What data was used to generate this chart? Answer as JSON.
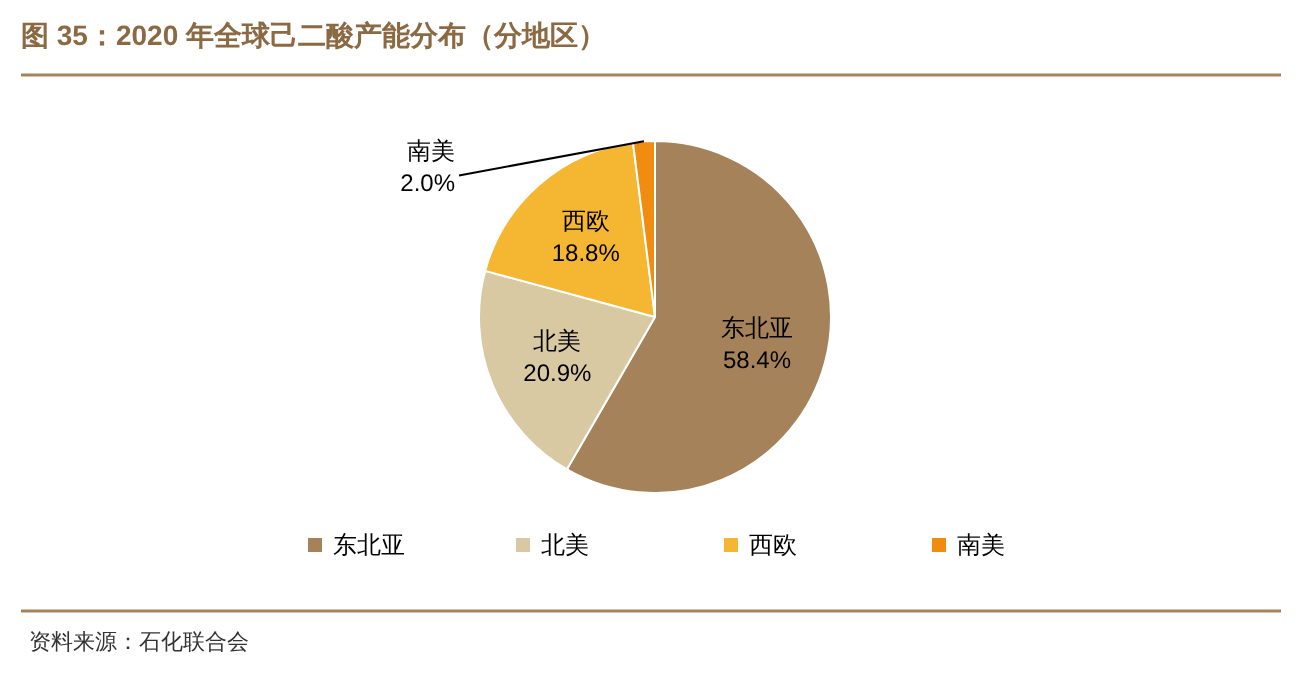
{
  "chart_data": {
    "type": "pie",
    "title": "图 35：2020 年全球己二酸产能分布（分地区）",
    "categories": [
      "东北亚",
      "北美",
      "西欧",
      "南美"
    ],
    "values": [
      58.4,
      20.9,
      18.8,
      2.0
    ],
    "colors": [
      "#a5825a",
      "#d8c9a3",
      "#f5b731",
      "#f08c0f"
    ],
    "value_labels": [
      "58.4%",
      "20.9%",
      "18.8%",
      "2.0%"
    ],
    "legend": "bottom",
    "annotations": [
      "资料来源：石化联合会"
    ]
  }
}
